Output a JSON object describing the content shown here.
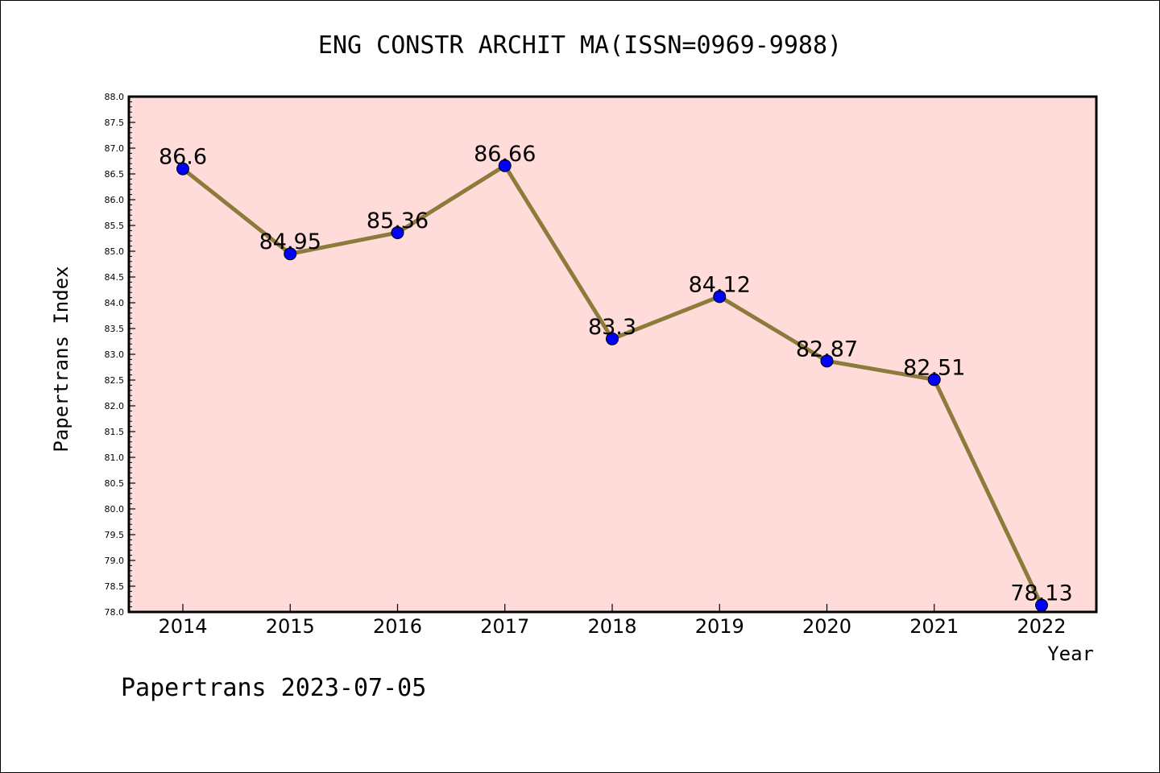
{
  "chart_data": {
    "type": "line",
    "title": "ENG CONSTR ARCHIT MA(ISSN=0969-9988)",
    "xlabel": "Year",
    "ylabel": "Papertrans Index",
    "categories": [
      "2014",
      "2015",
      "2016",
      "2017",
      "2018",
      "2019",
      "2020",
      "2021",
      "2022"
    ],
    "values": [
      86.6,
      84.95,
      85.36,
      86.66,
      83.3,
      84.12,
      82.87,
      82.51,
      78.13
    ],
    "data_labels": [
      "86.6",
      "84.95",
      "85.36",
      "86.66",
      "83.3",
      "84.12",
      "82.87",
      "82.51",
      "78.13"
    ],
    "ylim": [
      78.0,
      88.0
    ],
    "ytick_step": 0.5,
    "grid": false,
    "colors": {
      "plot_background": "#ffdcda",
      "line": "#8c7b3a",
      "marker": "#0000ff"
    }
  },
  "footer": "Papertrans 2023-07-05"
}
